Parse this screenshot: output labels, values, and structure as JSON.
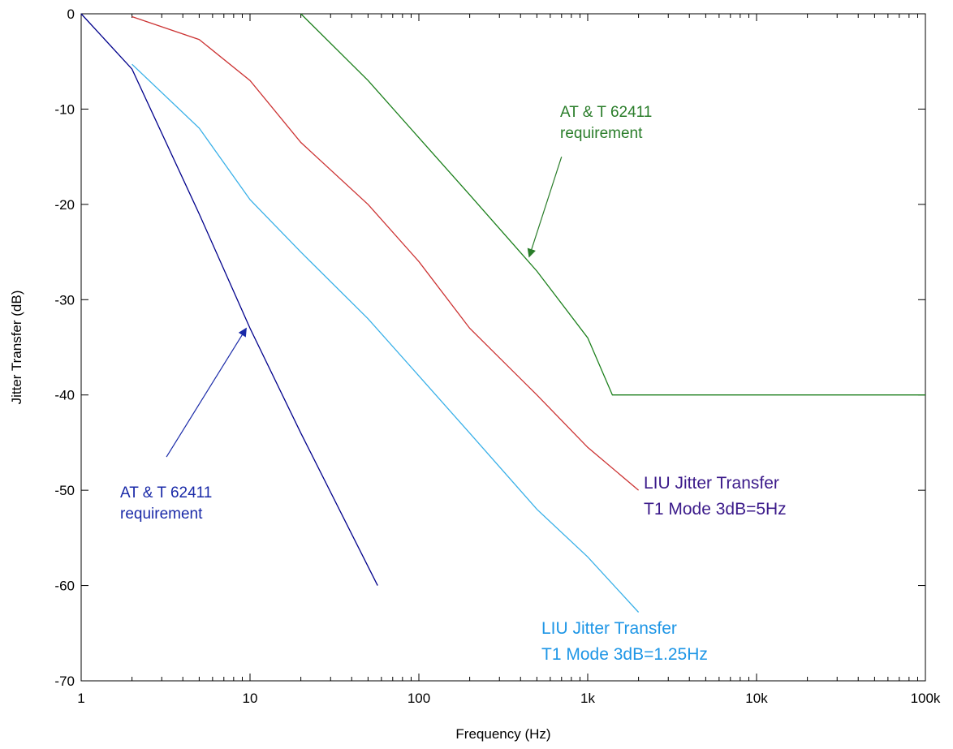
{
  "chart_data": {
    "type": "line",
    "title": "",
    "xlabel": "Frequency (Hz)",
    "ylabel": "Jitter Transfer (dB)",
    "x_scale": "log",
    "xlim": [
      1,
      100000
    ],
    "ylim": [
      -70,
      0
    ],
    "grid": false,
    "x_ticks": [
      {
        "value": 1,
        "label": "1"
      },
      {
        "value": 10,
        "label": "10"
      },
      {
        "value": 100,
        "label": "100"
      },
      {
        "value": 1000,
        "label": "1k"
      },
      {
        "value": 10000,
        "label": "10k"
      },
      {
        "value": 100000,
        "label": "100k"
      }
    ],
    "y_ticks": [
      {
        "value": 0,
        "label": "0"
      },
      {
        "value": -10,
        "label": "-10"
      },
      {
        "value": -20,
        "label": "-20"
      },
      {
        "value": -30,
        "label": "-30"
      },
      {
        "value": -40,
        "label": "-40"
      },
      {
        "value": -50,
        "label": "-50"
      },
      {
        "value": -60,
        "label": "-60"
      },
      {
        "value": -70,
        "label": "-70"
      }
    ],
    "series": [
      {
        "color": "#00008b",
        "points": [
          [
            1,
            0
          ],
          [
            2,
            -5.8
          ],
          [
            5,
            -21
          ],
          [
            10,
            -33
          ],
          [
            20,
            -44
          ],
          [
            57,
            -60
          ]
        ]
      },
      {
        "color": "#39b0e8",
        "points": [
          [
            2,
            -5.3
          ],
          [
            5,
            -12
          ],
          [
            10,
            -19.5
          ],
          [
            20,
            -25
          ],
          [
            50,
            -32
          ],
          [
            100,
            -38
          ],
          [
            200,
            -44
          ],
          [
            500,
            -52
          ],
          [
            1000,
            -57
          ],
          [
            2000,
            -62.8
          ]
        ]
      },
      {
        "color": "#cc3333",
        "points": [
          [
            2,
            -0.3
          ],
          [
            5,
            -2.7
          ],
          [
            10,
            -7
          ],
          [
            20,
            -13.5
          ],
          [
            50,
            -20
          ],
          [
            100,
            -26
          ],
          [
            200,
            -33
          ],
          [
            500,
            -40
          ],
          [
            1000,
            -45.5
          ],
          [
            2000,
            -50
          ]
        ]
      },
      {
        "color": "#1b7f1b",
        "points": [
          [
            20,
            0
          ],
          [
            50,
            -7
          ],
          [
            100,
            -13
          ],
          [
            200,
            -19
          ],
          [
            500,
            -27
          ],
          [
            1000,
            -34
          ],
          [
            1400,
            -40
          ],
          [
            100000,
            -40
          ]
        ]
      }
    ],
    "annotations": [
      {
        "id": "att-green",
        "lines": [
          "AT & T 62411",
          "requirement"
        ],
        "color": "#2a7d2a",
        "arrow_from": [
          700,
          -15
        ],
        "arrow_to": [
          450,
          -25.5
        ]
      },
      {
        "id": "att-blue",
        "lines": [
          "AT & T 62411",
          "requirement"
        ],
        "color": "#1a2aa8",
        "arrow_from": [
          3.2,
          -46.5
        ],
        "arrow_to": [
          9.5,
          -33
        ]
      },
      {
        "id": "liu-5hz",
        "lines": [
          "LIU Jitter Transfer",
          "T1 Mode 3dB=5Hz"
        ],
        "color": "#3b1a8a",
        "arrow_from": null,
        "arrow_to": null
      },
      {
        "id": "liu-125hz",
        "lines": [
          "LIU Jitter Transfer",
          "T1 Mode 3dB=1.25Hz"
        ],
        "color": "#1e96e6",
        "arrow_from": null,
        "arrow_to": null
      }
    ]
  }
}
